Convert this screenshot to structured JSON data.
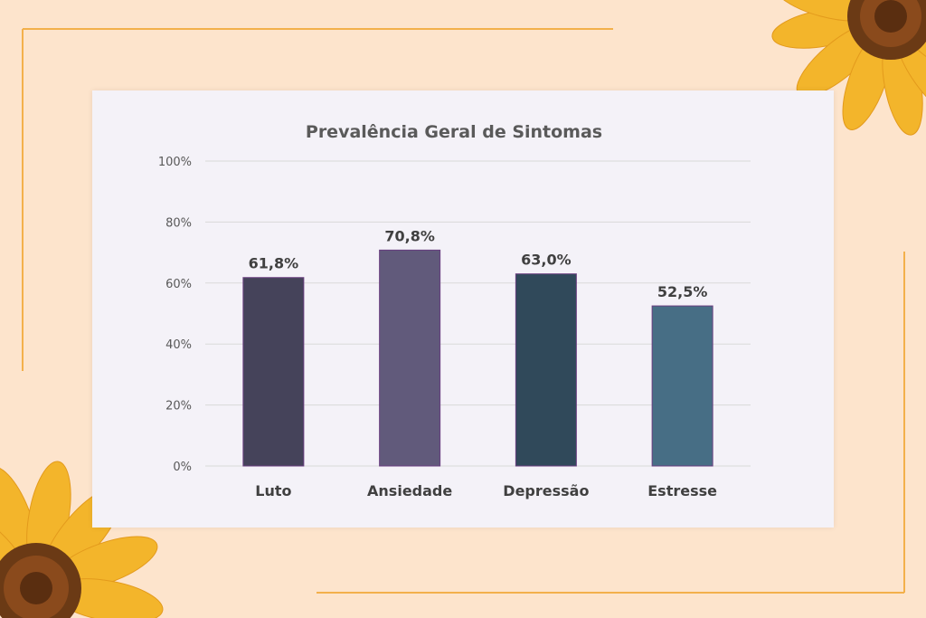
{
  "colors": {
    "background": "#fde4cc",
    "frame_line": "#f3b04b",
    "card": "#f4f2f8",
    "bar_border": "#6a3f80"
  },
  "decorations": [
    "sunflower-top-right",
    "sunflower-bottom-left"
  ],
  "chart_data": {
    "type": "bar",
    "title": "Prevalência Geral de Sintomas",
    "categories": [
      "Luto",
      "Ansiedade",
      "Depressão",
      "Estresse"
    ],
    "values": [
      61.8,
      70.8,
      63.0,
      52.5
    ],
    "value_labels": [
      "61,8%",
      "70,8%",
      "63,0%",
      "52,5%"
    ],
    "bar_colors": [
      "#45435a",
      "#615a7b",
      "#30495a",
      "#476e85"
    ],
    "ylim": [
      0,
      100
    ],
    "yticks": [
      0,
      20,
      40,
      60,
      80,
      100
    ],
    "ytick_labels": [
      "0%",
      "20%",
      "40%",
      "60%",
      "80%",
      "100%"
    ],
    "grid": true,
    "legend": false
  }
}
